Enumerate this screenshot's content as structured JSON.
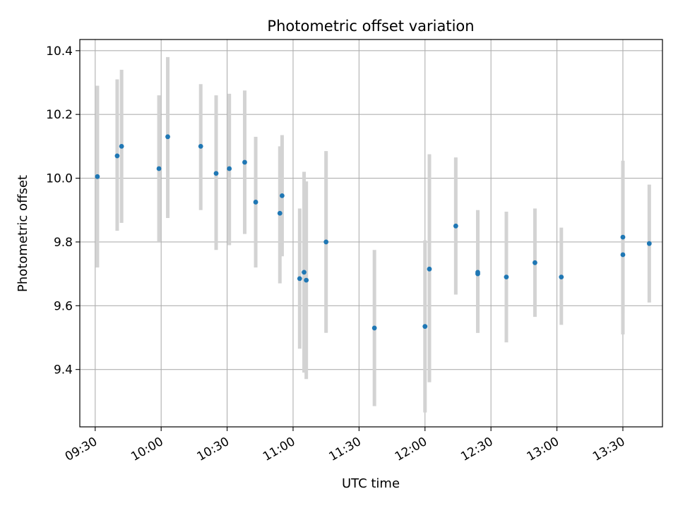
{
  "chart_data": {
    "type": "scatter",
    "title": "Photometric offset variation",
    "xlabel": "UTC time",
    "ylabel": "Photometric offset",
    "x_tick_labels": [
      "09:30",
      "10:00",
      "10:30",
      "11:00",
      "11:30",
      "12:00",
      "12:30",
      "13:00",
      "13:30"
    ],
    "y_ticks": [
      9.4,
      9.6,
      9.8,
      10.0,
      10.2,
      10.4
    ],
    "y_tick_labels": [
      "9.4",
      "9.6",
      "9.8",
      "10.0",
      "10.2",
      "10.4"
    ],
    "xlim": [
      "09:23",
      "13:48"
    ],
    "ylim": [
      9.22,
      10.435
    ],
    "grid": true,
    "colors": {
      "points": "#1f77b4",
      "errorbars": "#d3d3d3",
      "grid": "#b0b0b0"
    },
    "points": [
      {
        "x": "09:31",
        "y": 10.005,
        "ylow": 9.72,
        "yhigh": 10.29
      },
      {
        "x": "09:40",
        "y": 10.07,
        "ylow": 9.835,
        "yhigh": 10.31
      },
      {
        "x": "09:42",
        "y": 10.1,
        "ylow": 9.86,
        "yhigh": 10.34
      },
      {
        "x": "09:59",
        "y": 10.03,
        "ylow": 9.8,
        "yhigh": 10.26
      },
      {
        "x": "10:03",
        "y": 10.13,
        "ylow": 9.875,
        "yhigh": 10.38
      },
      {
        "x": "10:18",
        "y": 10.1,
        "ylow": 9.9,
        "yhigh": 10.295
      },
      {
        "x": "10:25",
        "y": 10.015,
        "ylow": 9.775,
        "yhigh": 10.26
      },
      {
        "x": "10:31",
        "y": 10.03,
        "ylow": 9.79,
        "yhigh": 10.265
      },
      {
        "x": "10:38",
        "y": 10.05,
        "ylow": 9.825,
        "yhigh": 10.275
      },
      {
        "x": "10:43",
        "y": 9.925,
        "ylow": 9.72,
        "yhigh": 10.13
      },
      {
        "x": "10:54",
        "y": 9.89,
        "ylow": 9.67,
        "yhigh": 10.1
      },
      {
        "x": "10:55",
        "y": 9.945,
        "ylow": 9.755,
        "yhigh": 10.135
      },
      {
        "x": "11:03",
        "y": 9.685,
        "ylow": 9.465,
        "yhigh": 9.905
      },
      {
        "x": "11:05",
        "y": 9.705,
        "ylow": 9.39,
        "yhigh": 10.02
      },
      {
        "x": "11:06",
        "y": 9.68,
        "ylow": 9.37,
        "yhigh": 9.99
      },
      {
        "x": "11:15",
        "y": 9.8,
        "ylow": 9.515,
        "yhigh": 10.085
      },
      {
        "x": "11:37",
        "y": 9.53,
        "ylow": 9.285,
        "yhigh": 9.775
      },
      {
        "x": "12:00",
        "y": 9.535,
        "ylow": 9.265,
        "yhigh": 9.805
      },
      {
        "x": "12:02",
        "y": 9.715,
        "ylow": 9.36,
        "yhigh": 10.075
      },
      {
        "x": "12:14",
        "y": 9.85,
        "ylow": 9.635,
        "yhigh": 10.065
      },
      {
        "x": "12:24",
        "y": 9.7,
        "ylow": 9.515,
        "yhigh": 9.895
      },
      {
        "x": "12:24",
        "y": 9.705,
        "ylow": 9.515,
        "yhigh": 9.9
      },
      {
        "x": "12:37",
        "y": 9.69,
        "ylow": 9.485,
        "yhigh": 9.895
      },
      {
        "x": "12:50",
        "y": 9.735,
        "ylow": 9.565,
        "yhigh": 9.905
      },
      {
        "x": "13:02",
        "y": 9.69,
        "ylow": 9.54,
        "yhigh": 9.845
      },
      {
        "x": "13:30",
        "y": 9.76,
        "ylow": 9.51,
        "yhigh": 10.01
      },
      {
        "x": "13:30",
        "y": 9.815,
        "ylow": 9.575,
        "yhigh": 10.055
      },
      {
        "x": "13:42",
        "y": 9.795,
        "ylow": 9.61,
        "yhigh": 9.98
      }
    ]
  }
}
